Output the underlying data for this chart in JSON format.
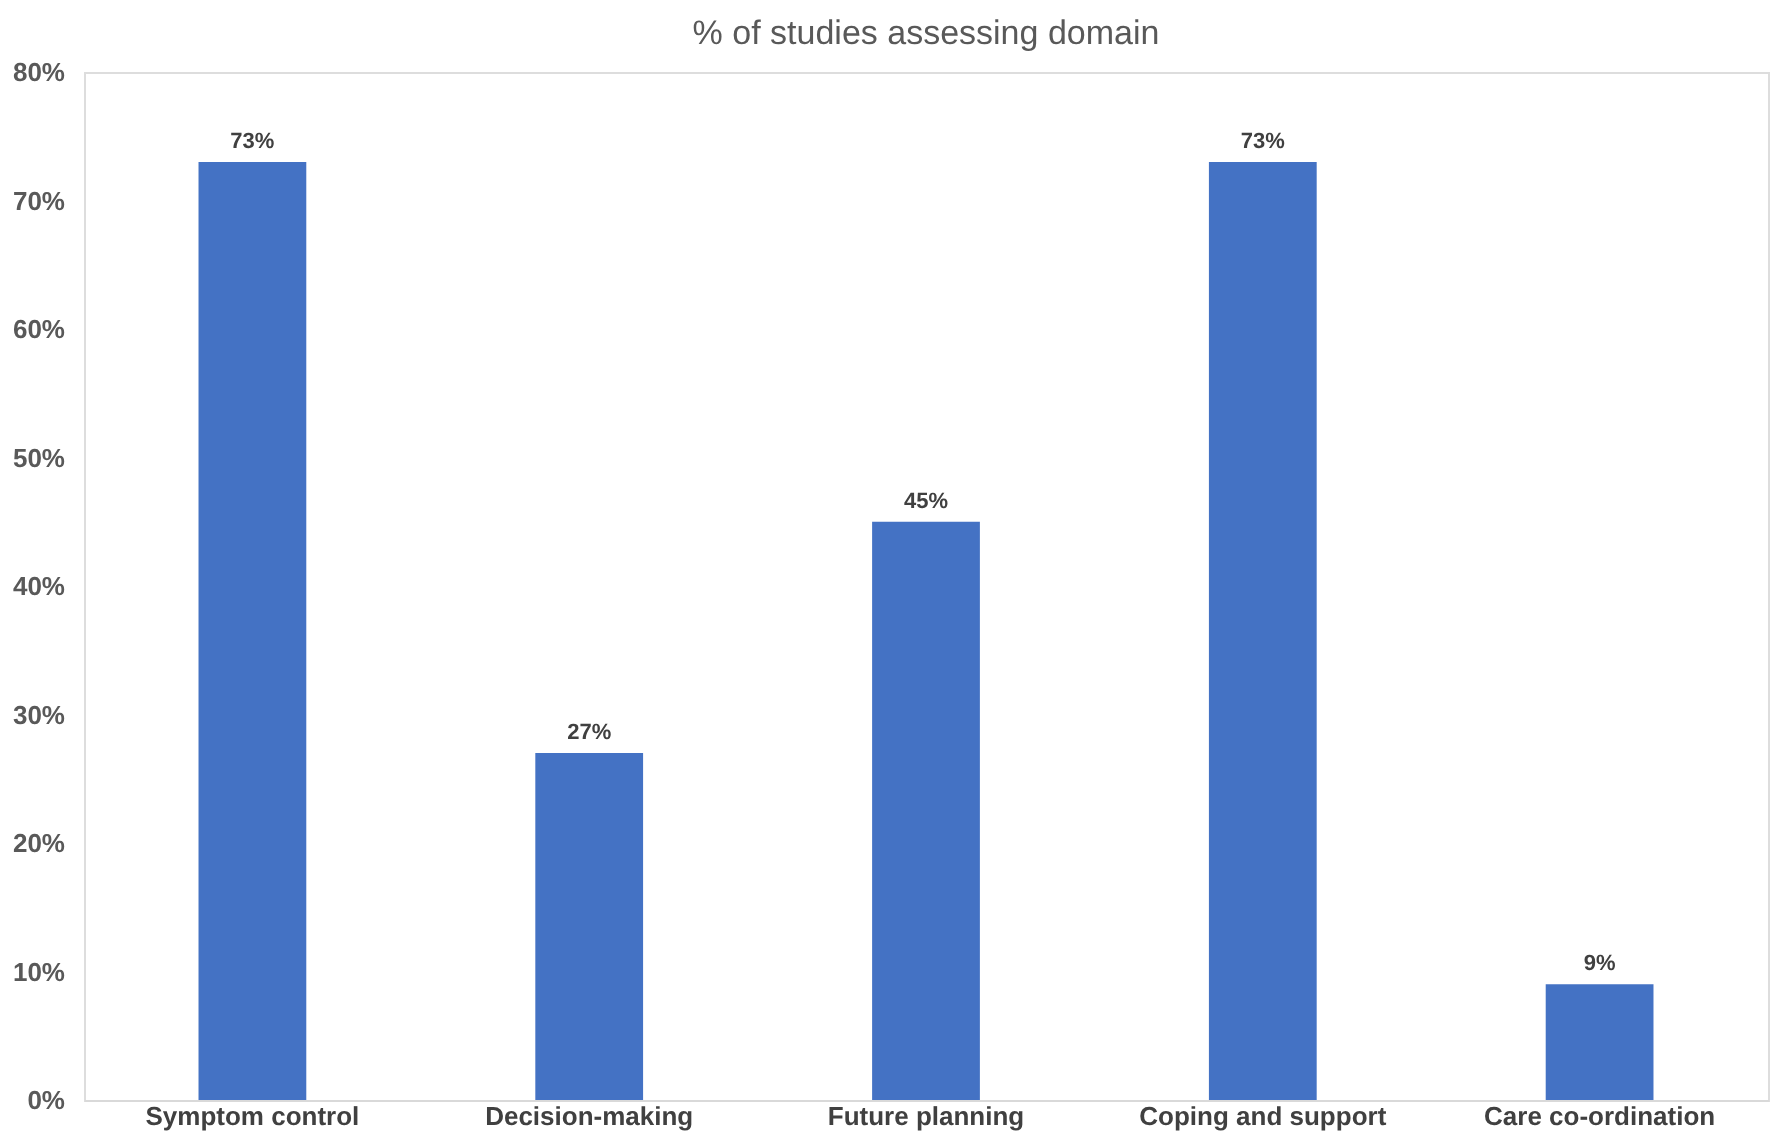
{
  "chart_data": {
    "type": "bar",
    "title": "% of studies assessing domain",
    "categories": [
      "Symptom control",
      "Decision-making",
      "Future planning",
      "Coping and support",
      "Care co-ordination"
    ],
    "values": [
      73,
      27,
      45,
      73,
      9
    ],
    "value_labels": [
      "73%",
      "27%",
      "45%",
      "73%",
      "9%"
    ],
    "color": "#4472c4",
    "ylim": [
      0,
      80
    ],
    "yticks": [
      {
        "value": 0,
        "label": "0%"
      },
      {
        "value": 10,
        "label": "10%"
      },
      {
        "value": 20,
        "label": "20%"
      },
      {
        "value": 30,
        "label": "30%"
      },
      {
        "value": 40,
        "label": "40%"
      },
      {
        "value": 50,
        "label": "50%"
      },
      {
        "value": 60,
        "label": "60%"
      },
      {
        "value": 70,
        "label": "70%"
      },
      {
        "value": 80,
        "label": "80%"
      }
    ],
    "grid": false
  }
}
